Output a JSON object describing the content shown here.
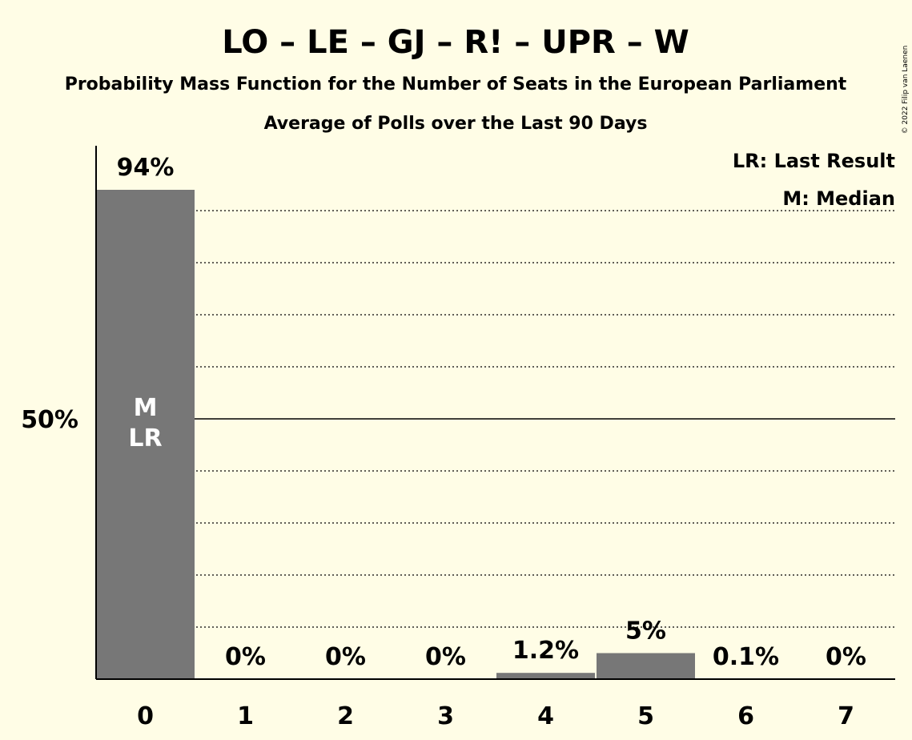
{
  "title": "LO – LE – GJ – R! – UPR – W",
  "subtitle": "Probability Mass Function for the Number of Seats in the European Parliament",
  "subtitle2": "Average of Polls over the Last 90 Days",
  "copyright": "© 2022 Filip van Laenen",
  "legend": {
    "last_result": "LR: Last Result",
    "median": "M: Median"
  },
  "colors": {
    "background": "#fffde6",
    "bar": "#777777",
    "inner_label": "#ffffff",
    "text": "#000000"
  },
  "chart_data": {
    "type": "bar",
    "categories": [
      "0",
      "1",
      "2",
      "3",
      "4",
      "5",
      "6",
      "7"
    ],
    "values": [
      94,
      0,
      0,
      0,
      1.2,
      5,
      0.1,
      0
    ],
    "value_labels": [
      "94%",
      "0%",
      "0%",
      "0%",
      "1.2%",
      "5%",
      "0.1%",
      "0%"
    ],
    "inner_labels": [
      "M",
      "LR"
    ],
    "inner_label_category": "0",
    "ylim": [
      0,
      100
    ],
    "y_tick_label": "50%",
    "y_tick_value": 50,
    "gridlines": [
      10,
      20,
      30,
      40,
      60,
      70,
      80,
      90
    ],
    "grid": true,
    "legend_position": "top-right"
  }
}
